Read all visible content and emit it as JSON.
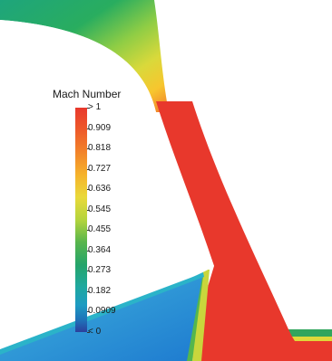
{
  "legend": {
    "title": "Mach Number",
    "labels": [
      "> 1",
      "0.909",
      "0.818",
      "0.727",
      "0.636",
      "0.545",
      "0.455",
      "0.364",
      "0.273",
      "0.182",
      "0.0909",
      "< 0"
    ],
    "colors": [
      "#e8382c",
      "#ee5a2a",
      "#f2842a",
      "#f5b32b",
      "#e9d93a",
      "#b4d43d",
      "#57b54c",
      "#25a46a",
      "#1fa8a0",
      "#1d9bc2",
      "#1f6fb8",
      "#2b3f9c"
    ]
  }
}
